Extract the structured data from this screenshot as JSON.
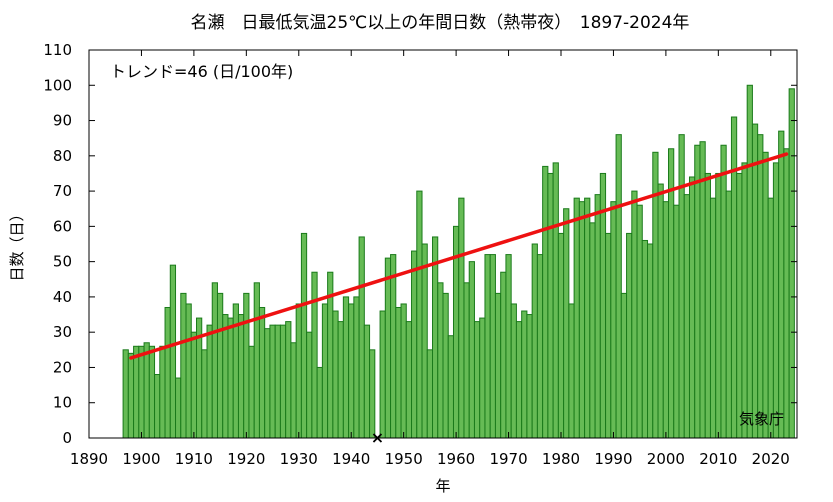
{
  "chart_data": {
    "type": "bar",
    "title": "名瀬　日最低気温25℃以上の年間日数（熱帯夜）　1897-2024年",
    "xlabel": "年",
    "ylabel": "日数（日）",
    "annotation_trend": "トレンド=46 (日/100年)",
    "credit": "気象庁",
    "xlim": [
      1890,
      2025
    ],
    "ylim": [
      0,
      110
    ],
    "x_ticks": [
      1890,
      1900,
      1910,
      1920,
      1930,
      1940,
      1950,
      1960,
      1970,
      1980,
      1990,
      2000,
      2010,
      2020
    ],
    "y_ticks": [
      0,
      10,
      20,
      30,
      40,
      50,
      60,
      70,
      80,
      90,
      100,
      110
    ],
    "grid": false,
    "colors": {
      "bar_fill": "#66bb55",
      "bar_stroke": "#1a7a1a",
      "trend": "#ee1111",
      "missing_marker": "#000000"
    },
    "start_year": 1897,
    "values": [
      25,
      24,
      26,
      26,
      27,
      26,
      18,
      26,
      37,
      49,
      17,
      41,
      38,
      30,
      34,
      25,
      32,
      44,
      41,
      35,
      34,
      38,
      35,
      41,
      26,
      44,
      37,
      31,
      32,
      32,
      32,
      33,
      27,
      38,
      58,
      30,
      47,
      20,
      38,
      47,
      36,
      33,
      40,
      38,
      40,
      57,
      32,
      25,
      null,
      36,
      51,
      52,
      37,
      38,
      33,
      53,
      70,
      55,
      25,
      57,
      44,
      41,
      29,
      60,
      68,
      44,
      50,
      33,
      34,
      52,
      52,
      41,
      47,
      52,
      38,
      33,
      36,
      35,
      55,
      52,
      77,
      75,
      78,
      58,
      65,
      38,
      68,
      67,
      68,
      61,
      69,
      75,
      58,
      67,
      86,
      41,
      58,
      70,
      66,
      56,
      55,
      81,
      72,
      67,
      82,
      66,
      86,
      69,
      74,
      83,
      84,
      75,
      68,
      75,
      83,
      70,
      91,
      75,
      78,
      100,
      89,
      86,
      81,
      68,
      78,
      87,
      82,
      99
    ],
    "missing_years": [
      1945
    ],
    "trend_line": {
      "x": [
        1898,
        2023
      ],
      "y": [
        22.7,
        80.5
      ]
    }
  }
}
